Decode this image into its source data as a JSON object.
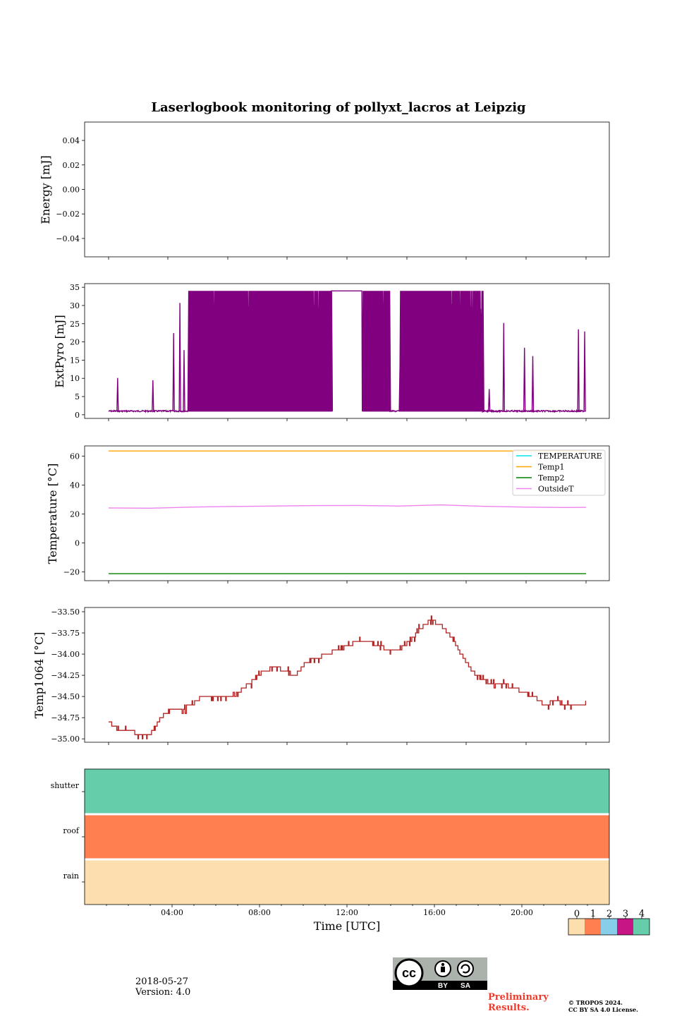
{
  "chart_data": {
    "title": "Laserlogbook monitoring of pollyxt_lacros at Leipzig",
    "xlabel": "Time [UTC]",
    "x_ticks": [
      "04:00",
      "08:00",
      "12:00",
      "16:00",
      "20:00"
    ],
    "panels": [
      {
        "type": "line",
        "ylabel": "Energy [mJ]",
        "ylim": [
          -0.055,
          0.055
        ],
        "yticks": [
          "0.04",
          "0.02",
          "0.00",
          "−0.02",
          "−0.04"
        ],
        "series": []
      },
      {
        "type": "line",
        "ylabel": "ExtPyro [mJ]",
        "ylim": [
          -1,
          36
        ],
        "yticks": [
          "35",
          "30",
          "25",
          "20",
          "15",
          "10",
          "5",
          "0"
        ],
        "x_range_hours": [
          1.0,
          23.95
        ],
        "color": "#800080",
        "baseline": 1.0,
        "max": 34.0,
        "spikes_at_hours": [
          1.4,
          3.1,
          4.1,
          4.4,
          4.6,
          9.4,
          13.5,
          14.2,
          14.4,
          15.0,
          17.5,
          18.7,
          19.3,
          20.0,
          21.0,
          21.4,
          23.6,
          23.9
        ],
        "saturated_block_hours": [
          [
            4.8,
            11.7
          ],
          [
            13.2,
            14.5
          ],
          [
            15.0,
            19.0
          ]
        ],
        "plateau_hours": [
          11.7,
          13.2
        ]
      },
      {
        "type": "line",
        "ylabel": "Temperature [°C]",
        "ylim": [
          -26,
          67
        ],
        "yticks": [
          "60",
          "40",
          "20",
          "0",
          "−20"
        ],
        "legend_position": "upper right",
        "series": [
          {
            "name": "TEMPERATURE",
            "color": "#00e5ee",
            "values": []
          },
          {
            "name": "Temp1",
            "color": "#ffa500",
            "x_hours": [
              1.0,
              24.0
            ],
            "values": [
              63.5,
              63.5
            ]
          },
          {
            "name": "Temp2",
            "color": "#008000",
            "x_hours": [
              1.0,
              24.0
            ],
            "values": [
              -21.2,
              -21.2
            ]
          },
          {
            "name": "OutsideT",
            "color": "#ee82ee",
            "x_hours": [
              1,
              3,
              5,
              7,
              9,
              11,
              13,
              15,
              17,
              19,
              21,
              23,
              24
            ],
            "values": [
              24.2,
              24.0,
              24.8,
              25.2,
              25.5,
              25.8,
              25.9,
              25.5,
              26.3,
              25.3,
              24.8,
              24.5,
              24.6
            ]
          }
        ]
      },
      {
        "type": "line",
        "ylabel": "Temp1064 [°C]",
        "ylim": [
          -35.04,
          -33.45
        ],
        "yticks": [
          "−33.50",
          "−33.75",
          "−34.00",
          "−34.25",
          "−34.50",
          "−34.75",
          "−35.00"
        ],
        "color": "#b22222",
        "x_hours": [
          1.0,
          1.5,
          2.0,
          2.5,
          3.0,
          3.5,
          4.0,
          4.5,
          5.0,
          5.5,
          6.0,
          6.5,
          7.0,
          7.5,
          8.0,
          8.5,
          9.0,
          9.5,
          10.0,
          10.5,
          11.0,
          11.5,
          12.0,
          12.5,
          13.0,
          13.5,
          14.0,
          14.5,
          15.0,
          15.5,
          16.0,
          16.5,
          17.0,
          17.5,
          18.0,
          18.5,
          19.0,
          19.5,
          20.0,
          20.5,
          21.0,
          21.5,
          22.0,
          22.5,
          23.0,
          23.5,
          24.0
        ],
        "values": [
          -34.8,
          -34.9,
          -34.9,
          -34.95,
          -34.95,
          -34.75,
          -34.65,
          -34.65,
          -34.6,
          -34.5,
          -34.5,
          -34.5,
          -34.5,
          -34.4,
          -34.3,
          -34.2,
          -34.15,
          -34.2,
          -34.25,
          -34.1,
          -34.05,
          -34.0,
          -33.95,
          -33.9,
          -33.85,
          -33.85,
          -33.9,
          -33.95,
          -33.95,
          -33.85,
          -33.7,
          -33.6,
          -33.65,
          -33.8,
          -34.0,
          -34.2,
          -34.3,
          -34.35,
          -34.35,
          -34.4,
          -34.45,
          -34.5,
          -34.6,
          -34.55,
          -34.6,
          -34.6,
          -34.6
        ]
      },
      {
        "type": "heatmap",
        "rows": [
          "shutter",
          "roof",
          "rain"
        ],
        "row_colors": [
          "#66cdaa",
          "#ff7f50",
          "#fddeae"
        ]
      }
    ],
    "colorbar": {
      "ticks": [
        "0",
        "1",
        "2",
        "3",
        "4"
      ],
      "colors": [
        "#fddeae",
        "#ff7f50",
        "#87ceeb",
        "#c71585",
        "#66cdaa"
      ]
    }
  },
  "footer": {
    "date": "2018-05-27",
    "version": "Version: 4.0",
    "preliminary": "Preliminary Results.",
    "copyright_line1": "© TROPOS 2024.",
    "copyright_line2": "CC BY SA 4.0 License.",
    "cc_labels": {
      "cc": "cc",
      "by": "BY",
      "sa": "SA"
    }
  }
}
